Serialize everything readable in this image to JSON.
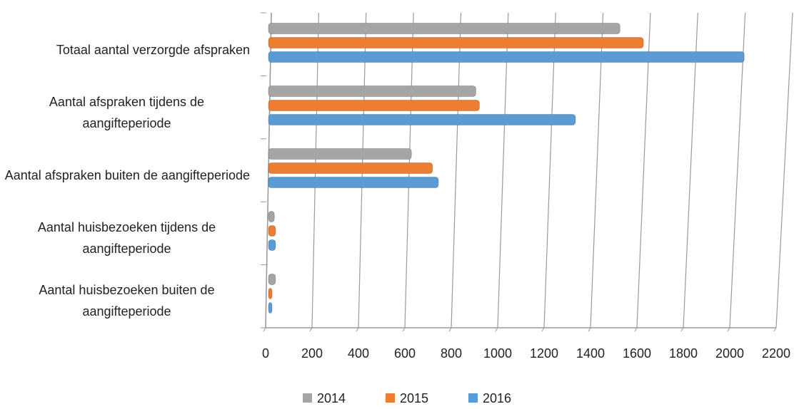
{
  "chart_data": {
    "type": "bar",
    "orientation": "horizontal",
    "categories": [
      "Totaal aantal verzorgde afspraken",
      "Aantal afspraken tijdens de aangifteperiode",
      "Aantal afspraken buiten de aangifteperiode",
      "Aantal huisbezoeken tijdens de aangifteperiode",
      "Aantal huisbezoeken buiten de aangifteperiode"
    ],
    "series": [
      {
        "name": "2014",
        "color": "#a5a5a5",
        "values": [
          1500,
          885,
          610,
          25,
          30
        ]
      },
      {
        "name": "2015",
        "color": "#ed7d31",
        "values": [
          1600,
          900,
          700,
          30,
          15
        ]
      },
      {
        "name": "2016",
        "color": "#5b9bd5",
        "values": [
          2030,
          1310,
          725,
          30,
          15
        ]
      }
    ],
    "xlim": [
      0,
      2200
    ],
    "xticks": [
      0,
      200,
      400,
      600,
      800,
      1000,
      1200,
      1400,
      1600,
      1800,
      2000,
      2200
    ],
    "grid": true,
    "legend": "bottom"
  }
}
